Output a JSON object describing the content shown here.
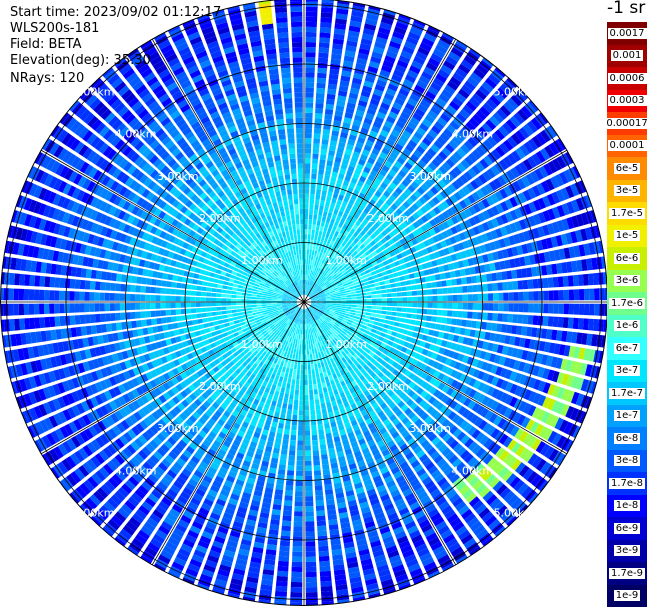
{
  "info": {
    "start_time": "Start time: 2023/09/02 01:12:17",
    "instrument": "WLS200s-181",
    "field": "Field: BETA",
    "elevation": "Elevation(deg): 35.30",
    "nrays": "NRays: 120"
  },
  "colorbar": {
    "unit": "-1 sr",
    "labels": [
      "0.0017",
      "0.001",
      "0.0006",
      "0.0003",
      "0.00017",
      "0.0001",
      "6e-5",
      "3e-5",
      "1.7e-5",
      "1e-5",
      "6e-6",
      "3e-6",
      "1.7e-6",
      "1e-6",
      "6e-7",
      "3e-7",
      "1.7e-7",
      "1e-7",
      "6e-8",
      "3e-8",
      "1.7e-8",
      "1e-8",
      "6e-9",
      "3e-9",
      "1.7e-9",
      "1e-9"
    ],
    "colors": [
      "#800000",
      "#a00000",
      "#c80000",
      "#f00000",
      "#ff3c00",
      "#ff6400",
      "#ff8c00",
      "#ffb400",
      "#ffdc00",
      "#f0f000",
      "#c8f000",
      "#96ff50",
      "#6eff8c",
      "#50ffc8",
      "#32ffff",
      "#00e6ff",
      "#00c8ff",
      "#00a0ff",
      "#0080ff",
      "#0058ff",
      "#0032ff",
      "#0000ff",
      "#0000d2",
      "#0000aa",
      "#000082",
      "#000064"
    ]
  },
  "chart_data": {
    "type": "heatmap",
    "projection": "polar PPI",
    "field": "BETA",
    "rays": 120,
    "range_rings_km": [
      1,
      2,
      3,
      4,
      5
    ],
    "range_labels": [
      "1.00km",
      "2.00km",
      "3.00km",
      "4.00km",
      "5.00km"
    ],
    "max_range_km": 5.1,
    "spokes_deg": [
      0,
      30,
      60,
      90,
      120,
      150,
      180,
      210,
      240,
      270,
      300,
      330
    ],
    "label_angles_deg": [
      45,
      135,
      225,
      315
    ],
    "background_log10_beta": {
      "near_range_0_to_1km": -6.3,
      "mid_range_1_to_2km": -6.6,
      "range_3km": -7.0,
      "range_4km": -7.5,
      "range_5km": -7.8
    },
    "features": [
      {
        "name": "aerosol-band-east",
        "azimuth_deg_range": [
          100,
          142
        ],
        "range_km": [
          4.1,
          4.7
        ],
        "log10_beta": -5.4
      },
      {
        "name": "aerosol-band-north",
        "azimuth_deg_range": [
          350,
          354
        ],
        "range_km": [
          4.8,
          5.1
        ],
        "log10_beta": -5.0
      }
    ]
  }
}
